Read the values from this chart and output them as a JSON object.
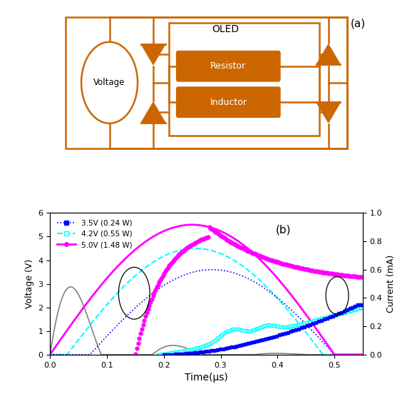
{
  "title_a": "(a)",
  "title_b": "(b)",
  "circuit_color": "#CC6600",
  "oled_fill": "#CC6600",
  "oled_text_color": "white",
  "resistor_label": "Resistor",
  "inductor_label": "Inductor",
  "voltage_label": "Voltage",
  "legend_labels": [
    "3.5V (0.24 W)",
    "4.2V (0.55 W)",
    "5.0V (1.48 W)"
  ],
  "xlabel": "Time(μs)",
  "ylabel_left": "Voltage (V)",
  "ylabel_right": "Current (mA)",
  "xlim": [
    0.0,
    0.55
  ],
  "ylim_left": [
    0,
    6
  ],
  "ylim_right": [
    0.0,
    1.0
  ],
  "xticks": [
    0.0,
    0.1,
    0.2,
    0.3,
    0.4,
    0.5
  ],
  "bg_color": "white"
}
